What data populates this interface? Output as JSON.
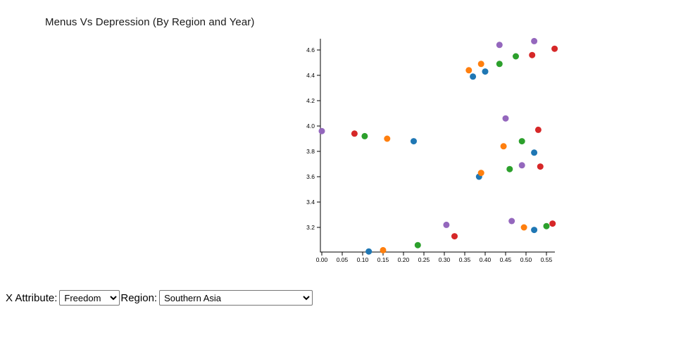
{
  "page": {
    "title": "Menus Vs Depression (By Region and Year)"
  },
  "controls": {
    "x_attribute_label": "X Attribute:",
    "x_attribute_value": "Freedom",
    "region_label": "Region:",
    "region_value": "Southern Asia"
  },
  "chart_data": {
    "type": "scatter",
    "title": "Menus Vs Depression (By Region and Year)",
    "xlabel": "",
    "ylabel": "",
    "legend": "none",
    "grid": false,
    "x_axis": {
      "min": 0.0,
      "max": 0.57,
      "ticks": [
        0.0,
        0.05,
        0.1,
        0.15,
        0.2,
        0.25,
        0.3,
        0.35,
        0.4,
        0.45,
        0.5,
        0.55
      ]
    },
    "y_axis": {
      "min": 3.0,
      "max": 4.7,
      "ticks": [
        3.2,
        3.4,
        3.6,
        3.8,
        4.0,
        4.2,
        4.4,
        4.6
      ]
    },
    "series": [
      {
        "name": "blue",
        "color": "#1f77b4",
        "points": [
          [
            0.37,
            4.39
          ],
          [
            0.4,
            4.43
          ],
          [
            0.225,
            3.88
          ],
          [
            0.52,
            3.79
          ],
          [
            0.385,
            3.6
          ],
          [
            0.115,
            3.01
          ],
          [
            0.52,
            3.18
          ]
        ]
      },
      {
        "name": "orange",
        "color": "#ff7f0e",
        "points": [
          [
            0.36,
            4.44
          ],
          [
            0.39,
            4.49
          ],
          [
            0.16,
            3.9
          ],
          [
            0.445,
            3.84
          ],
          [
            0.39,
            3.63
          ],
          [
            0.15,
            3.02
          ],
          [
            0.495,
            3.2
          ]
        ]
      },
      {
        "name": "green",
        "color": "#2ca02c",
        "points": [
          [
            0.435,
            4.49
          ],
          [
            0.475,
            4.55
          ],
          [
            0.105,
            3.92
          ],
          [
            0.49,
            3.88
          ],
          [
            0.46,
            3.66
          ],
          [
            0.235,
            3.06
          ],
          [
            0.55,
            3.21
          ]
        ]
      },
      {
        "name": "red",
        "color": "#d62728",
        "points": [
          [
            0.515,
            4.56
          ],
          [
            0.57,
            4.61
          ],
          [
            0.08,
            3.94
          ],
          [
            0.53,
            3.97
          ],
          [
            0.535,
            3.68
          ],
          [
            0.325,
            3.13
          ],
          [
            0.565,
            3.23
          ]
        ]
      },
      {
        "name": "purple",
        "color": "#9467bd",
        "points": [
          [
            0.435,
            4.64
          ],
          [
            0.52,
            4.67
          ],
          [
            0.0,
            3.96
          ],
          [
            0.45,
            4.06
          ],
          [
            0.49,
            3.69
          ],
          [
            0.305,
            3.22
          ],
          [
            0.465,
            3.25
          ]
        ]
      }
    ]
  }
}
